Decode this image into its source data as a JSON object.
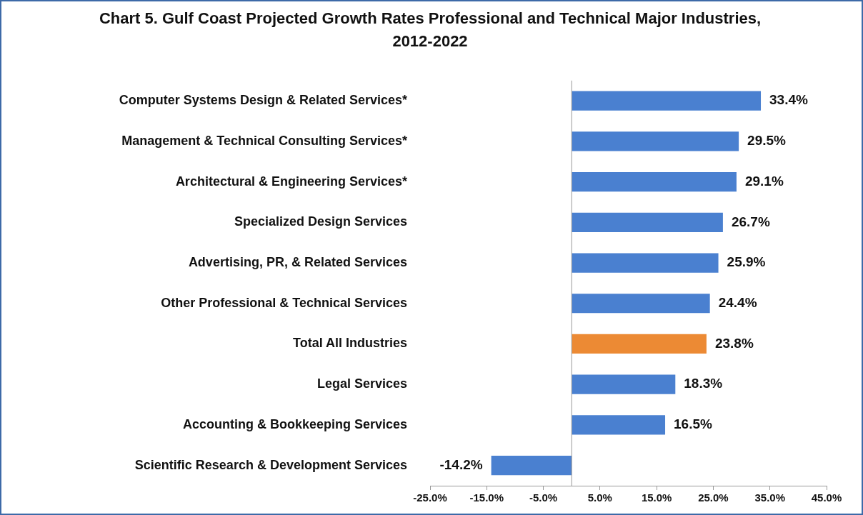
{
  "chart_data": {
    "type": "bar",
    "orientation": "horizontal",
    "title": "Chart 5. Gulf Coast Projected Growth Rates Professional and Technical Major Industries, 2012-2022",
    "categories": [
      "Computer Systems Design & Related Services*",
      "Management & Technical Consulting Services*",
      "Architectural & Engineering Services*",
      "Specialized Design Services",
      "Advertising, PR, & Related Services",
      "Other Professional & Technical Services",
      "Total All Industries",
      "Legal Services",
      "Accounting & Bookkeeping Services",
      "Scientific Research & Development Services"
    ],
    "values": [
      33.4,
      29.5,
      29.1,
      26.7,
      25.9,
      24.4,
      23.8,
      18.3,
      16.5,
      -14.2
    ],
    "value_labels": [
      "33.4%",
      "29.5%",
      "29.1%",
      "26.7%",
      "25.9%",
      "24.4%",
      "23.8%",
      "18.3%",
      "16.5%",
      "-14.2%"
    ],
    "colors": [
      "#4a80d0",
      "#4a80d0",
      "#4a80d0",
      "#4a80d0",
      "#4a80d0",
      "#4a80d0",
      "#ec8a34",
      "#4a80d0",
      "#4a80d0",
      "#4a80d0"
    ],
    "xlim": [
      -25,
      45
    ],
    "xticks": [
      {
        "value": -25,
        "label": "-25.0%"
      },
      {
        "value": -15,
        "label": "-15.0%"
      },
      {
        "value": -5,
        "label": "-5.0%"
      },
      {
        "value": 5,
        "label": "5.0%"
      },
      {
        "value": 15,
        "label": "15.0%"
      },
      {
        "value": 25,
        "label": "25.0%"
      },
      {
        "value": 35,
        "label": "35.0%"
      },
      {
        "value": 45,
        "label": "45.0%"
      }
    ],
    "grid": false,
    "legend": false
  }
}
